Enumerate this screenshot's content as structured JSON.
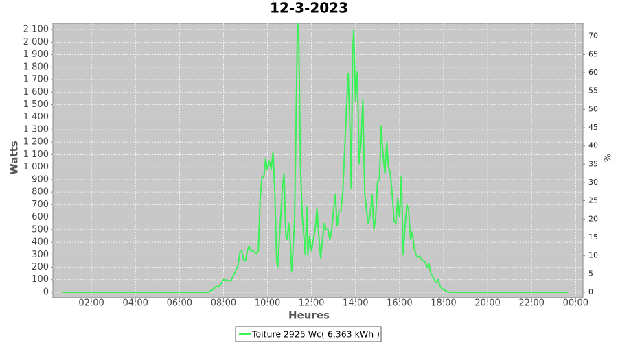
{
  "chart_data": {
    "type": "line",
    "title": "12-3-2023",
    "xlabel": "Heures",
    "ylabel": "Watts",
    "y2label": "%",
    "x": [
      40,
      420,
      440,
      450,
      460,
      470,
      480,
      490,
      500,
      510,
      520,
      525,
      530,
      535,
      540,
      545,
      550,
      555,
      560,
      570,
      575,
      580,
      585,
      590,
      595,
      600,
      605,
      610,
      615,
      620,
      625,
      628,
      632,
      640,
      645,
      650,
      653,
      658,
      662,
      666,
      670,
      674,
      678,
      682,
      685,
      690,
      695,
      700,
      703,
      707,
      710,
      715,
      720,
      725,
      730,
      735,
      740,
      745,
      750,
      755,
      760,
      765,
      770,
      775,
      780,
      785,
      790,
      795,
      800,
      805,
      810,
      815,
      820,
      825,
      828,
      832,
      835,
      840,
      845,
      850,
      855,
      860,
      865,
      870,
      875,
      880,
      885,
      890,
      895,
      900,
      905,
      910,
      915,
      920,
      925,
      930,
      935,
      940,
      945,
      950,
      955,
      960,
      965,
      970,
      975,
      980,
      985,
      990,
      995,
      1000,
      1005,
      1010,
      1015,
      1020,
      1030,
      1035,
      1040,
      1045,
      1055,
      1060,
      1065,
      1070,
      1075,
      1080,
      1090,
      1100,
      1420
    ],
    "series": [
      {
        "name": "Toiture 2925 Wc( 6,363 kWh )",
        "color": "#3cf05a",
        "values": [
          0,
          0,
          0,
          20,
          45,
          50,
          100,
          95,
          90,
          150,
          220,
          320,
          330,
          260,
          250,
          330,
          370,
          330,
          330,
          310,
          330,
          750,
          920,
          920,
          1070,
          980,
          1050,
          980,
          1120,
          800,
          250,
          200,
          400,
          800,
          950,
          450,
          420,
          550,
          400,
          170,
          350,
          600,
          1400,
          2150,
          2100,
          1000,
          600,
          420,
          300,
          680,
          300,
          450,
          330,
          420,
          500,
          670,
          450,
          270,
          420,
          550,
          500,
          500,
          420,
          500,
          650,
          780,
          530,
          650,
          650,
          800,
          1100,
          1450,
          1750,
          1300,
          830,
          1900,
          2100,
          1530,
          1760,
          1030,
          1200,
          1540,
          800,
          650,
          550,
          620,
          780,
          500,
          600,
          880,
          900,
          1330,
          1100,
          950,
          1200,
          1000,
          950,
          780,
          570,
          550,
          750,
          600,
          930,
          300,
          530,
          700,
          650,
          420,
          480,
          350,
          300,
          280,
          290,
          260,
          240,
          200,
          230,
          150,
          100,
          80,
          100,
          50,
          30,
          20,
          5,
          0,
          0
        ]
      }
    ],
    "xlim": [
      15,
      1460
    ],
    "xticks": [
      {
        "value": 120,
        "label": "02:00"
      },
      {
        "value": 240,
        "label": "04:00"
      },
      {
        "value": 360,
        "label": "06:00"
      },
      {
        "value": 480,
        "label": "08:00"
      },
      {
        "value": 600,
        "label": "10:00"
      },
      {
        "value": 720,
        "label": "12:00"
      },
      {
        "value": 840,
        "label": "14:00"
      },
      {
        "value": 960,
        "label": "16:00"
      },
      {
        "value": 1080,
        "label": "18:00"
      },
      {
        "value": 1200,
        "label": "20:00"
      },
      {
        "value": 1320,
        "label": "22:00"
      },
      {
        "value": 1440,
        "label": "00:00"
      }
    ],
    "ylim": [
      -44,
      2150
    ],
    "yticks": [
      0,
      100,
      200,
      300,
      400,
      500,
      600,
      700,
      800,
      900,
      {
        "value": 1000,
        "label": "1 000"
      },
      {
        "value": 1100,
        "label": "1 100"
      },
      {
        "value": 1200,
        "label": "1 200"
      },
      {
        "value": 1300,
        "label": "1 300"
      },
      {
        "value": 1400,
        "label": "1 400"
      },
      {
        "value": 1500,
        "label": "1 500"
      },
      {
        "value": 1600,
        "label": "1 600"
      },
      {
        "value": 1700,
        "label": "1 700"
      },
      {
        "value": 1800,
        "label": "1 800"
      },
      {
        "value": 1900,
        "label": "1 900"
      },
      {
        "value": 2000,
        "label": "2 000"
      },
      {
        "value": 2100,
        "label": "2 100"
      }
    ],
    "y2lim": [
      -1.5,
      73.5
    ],
    "y2ticks": [
      0,
      5,
      10,
      15,
      20,
      25,
      30,
      35,
      40,
      45,
      50,
      55,
      60,
      65,
      70
    ],
    "grid": true,
    "legend": "bottom"
  }
}
